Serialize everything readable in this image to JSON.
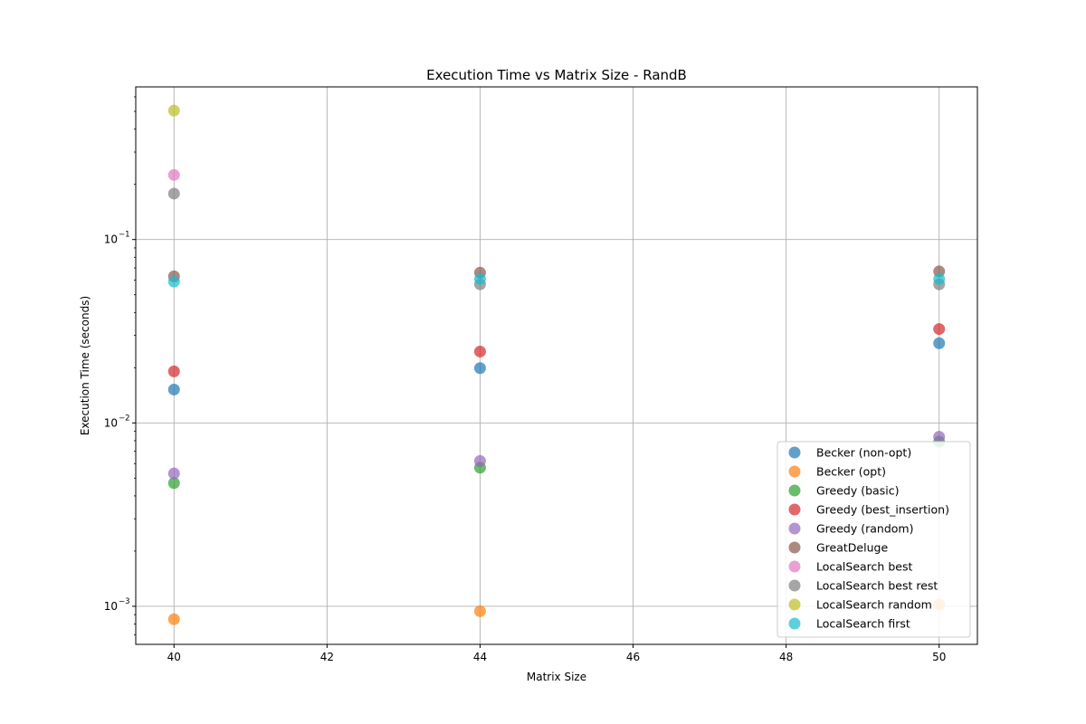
{
  "chart_data": {
    "type": "scatter",
    "title": "Execution Time vs Matrix Size - RandB",
    "xlabel": "Matrix Size",
    "ylabel": "Execution Time (seconds)",
    "xlim": [
      39.5,
      50.5
    ],
    "ylim": [
      0.00062,
      0.68
    ],
    "yscale": "log",
    "grid": true,
    "legend_position": "lower-right",
    "x_ticks": [
      40,
      42,
      44,
      46,
      48,
      50
    ],
    "x_tick_labels": [
      "40",
      "42",
      "44",
      "46",
      "48",
      "50"
    ],
    "y_ticks": [
      0.001,
      0.01,
      0.1
    ],
    "y_tick_labels": [
      "10",
      "10",
      "10"
    ],
    "y_tick_exponents": [
      "−3",
      "−2",
      "−1"
    ],
    "series": [
      {
        "name": "Becker (non-opt)",
        "color": "#1f77b4",
        "x": [
          40,
          44,
          50
        ],
        "y": [
          0.0152,
          0.0199,
          0.0272
        ]
      },
      {
        "name": "Becker (opt)",
        "color": "#ff7f0e",
        "x": [
          40,
          44,
          50
        ],
        "y": [
          0.00085,
          0.00094,
          0.00102
        ]
      },
      {
        "name": "Greedy (basic)",
        "color": "#2ca02c",
        "x": [
          40,
          44,
          50
        ],
        "y": [
          0.0047,
          0.0057,
          0.0079
        ]
      },
      {
        "name": "Greedy (best_insertion)",
        "color": "#d62728",
        "x": [
          40,
          44,
          50
        ],
        "y": [
          0.0191,
          0.0245,
          0.0325
        ]
      },
      {
        "name": "Greedy (random)",
        "color": "#9467bd",
        "x": [
          40,
          44,
          50
        ],
        "y": [
          0.0053,
          0.0062,
          0.0084
        ]
      },
      {
        "name": "GreatDeluge",
        "color": "#8c564b",
        "x": [
          40,
          44,
          50
        ],
        "y": [
          0.063,
          0.066,
          0.067
        ]
      },
      {
        "name": "LocalSearch best",
        "color": "#e377c2",
        "x": [
          40
        ],
        "y": [
          0.225
        ]
      },
      {
        "name": "LocalSearch best rest",
        "color": "#7f7f7f",
        "x": [
          40,
          44,
          50
        ],
        "y": [
          0.178,
          0.057,
          0.057
        ]
      },
      {
        "name": "LocalSearch random",
        "color": "#bcbd22",
        "x": [
          40
        ],
        "y": [
          0.505
        ]
      },
      {
        "name": "LocalSearch first",
        "color": "#17becf",
        "x": [
          40,
          44,
          50
        ],
        "y": [
          0.059,
          0.061,
          0.061
        ]
      }
    ]
  }
}
